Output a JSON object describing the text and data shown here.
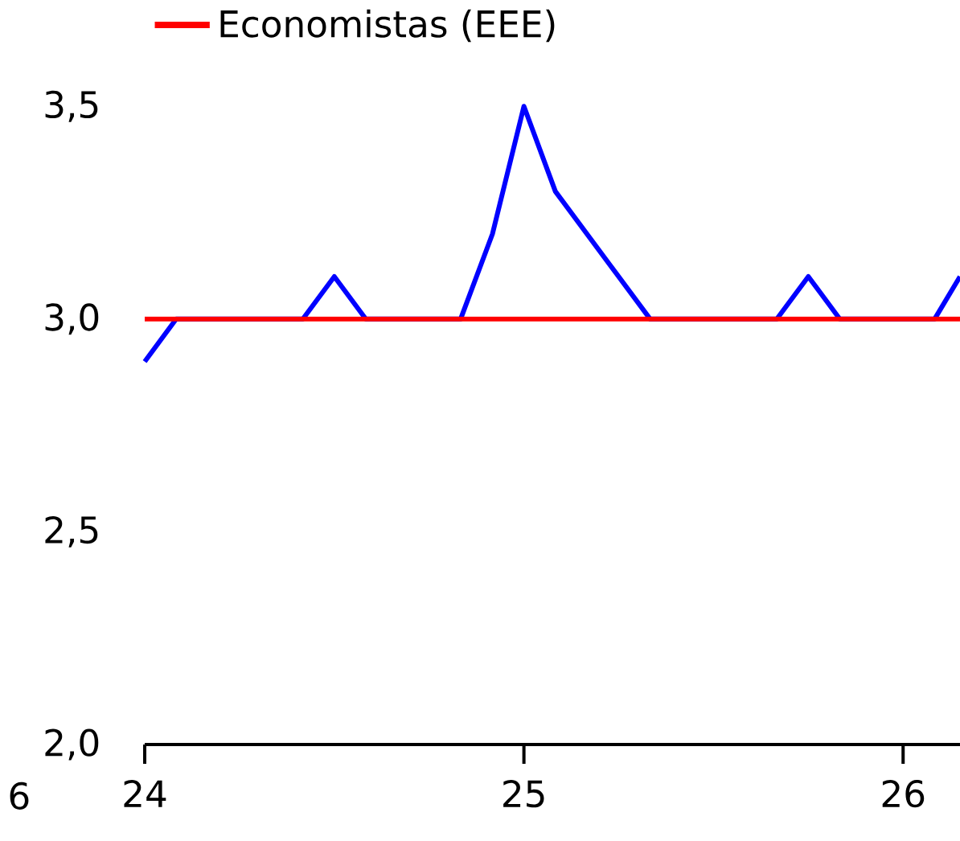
{
  "chart_data": {
    "type": "line",
    "series": [
      {
        "color": "#0000ff",
        "x": [
          24,
          24.083,
          24.417,
          24.5,
          24.583,
          24.833,
          24.917,
          25,
          25.083,
          25.333,
          25.667,
          25.75,
          25.833,
          26.083,
          26.15
        ],
        "values": [
          2.9,
          3.0,
          3.0,
          3.1,
          3.0,
          3.0,
          3.2,
          3.5,
          3.3,
          3.0,
          3.0,
          3.1,
          3.0,
          3.0,
          3.1
        ]
      },
      {
        "name": "Economistas (EEE)",
        "color": "#ff0000",
        "x": [
          24,
          26.15
        ],
        "values": [
          3.0,
          3.0
        ]
      }
    ],
    "xlim": [
      24,
      26.15
    ],
    "ylim": [
      2.0,
      3.5
    ],
    "xticks": [
      24,
      25,
      26
    ],
    "yticks": [
      {
        "value": 2.0,
        "label": "2,0"
      },
      {
        "value": 2.5,
        "label": "2,5"
      },
      {
        "value": 3.0,
        "label": "3,0"
      },
      {
        "value": 3.5,
        "label": "3,5"
      }
    ],
    "legend": "top left",
    "annotations": [
      "6"
    ]
  }
}
